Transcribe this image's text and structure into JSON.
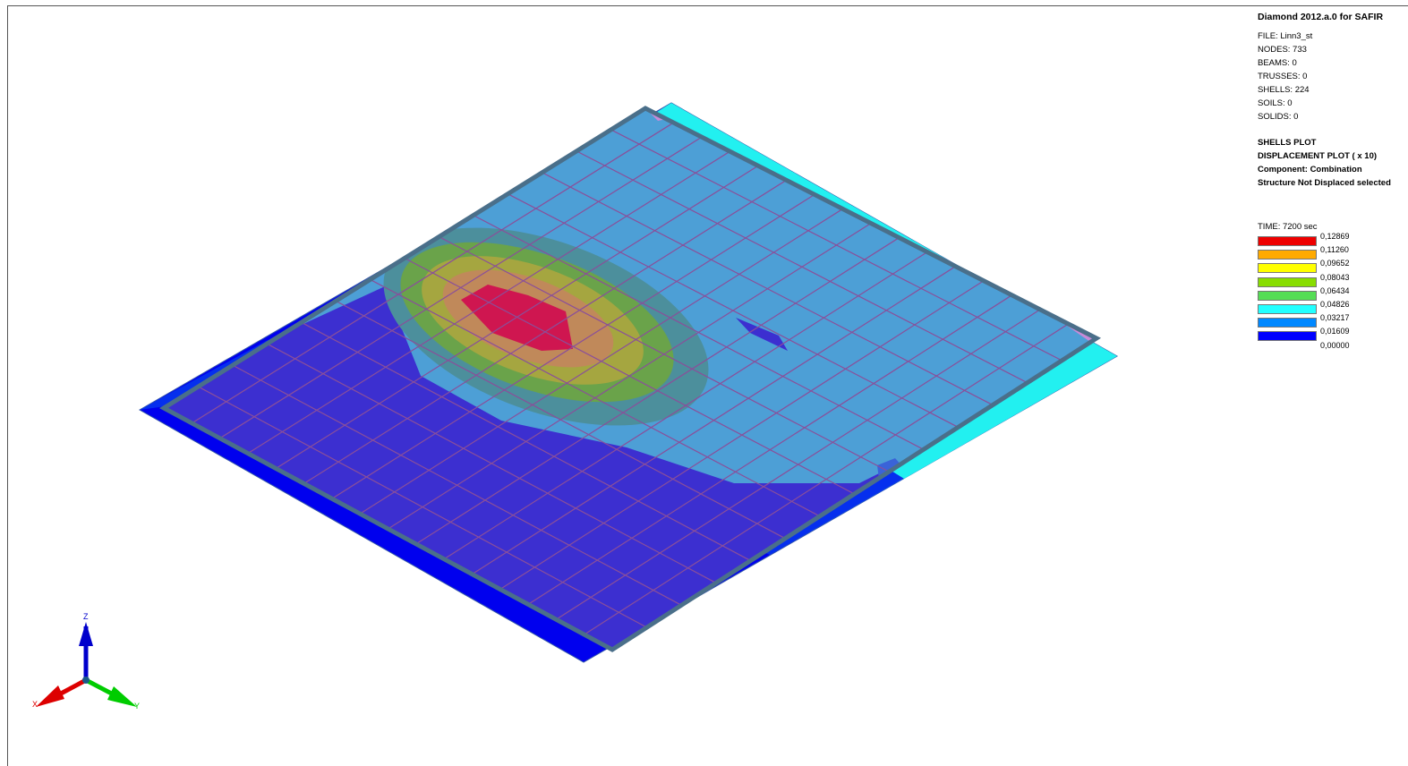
{
  "header": {
    "title": "Diamond 2012.a.0 for SAFIR",
    "file": "FILE: Linn3_st",
    "nodes": "NODES: 733",
    "beams": "BEAMS: 0",
    "trusses": "TRUSSES: 0",
    "shells": "SHELLS: 224",
    "soils": "SOILS: 0",
    "solids": "SOLIDS: 0"
  },
  "plot": {
    "type": "SHELLS PLOT",
    "mode": "DISPLACEMENT PLOT ( x 10)",
    "component": "Component: Combination",
    "structure": "Structure Not Displaced selected"
  },
  "legend": {
    "time": "TIME: 7200 sec",
    "levels": [
      {
        "value": "0,12869",
        "color": "#ee0000"
      },
      {
        "value": "0,11260",
        "color": "#ffaa00"
      },
      {
        "value": "0,09652",
        "color": "#ffff00"
      },
      {
        "value": "0,08043",
        "color": "#88dd00"
      },
      {
        "value": "0,06434",
        "color": "#55dd55"
      },
      {
        "value": "0,04826",
        "color": "#22ffff"
      },
      {
        "value": "0,03217",
        "color": "#0088ff"
      },
      {
        "value": "0,01609",
        "color": "#0000ff"
      },
      {
        "value": "0,00000",
        "color": null
      }
    ]
  },
  "axes": {
    "x": "X",
    "y": "Y",
    "z": "Z",
    "x_color": "#dd0000",
    "y_color": "#00cc00",
    "z_color": "#0000cc"
  },
  "colors": {
    "grid": "#8a4f9a",
    "overlay": "#3f8fcf",
    "frame": "#4a6f8a"
  }
}
